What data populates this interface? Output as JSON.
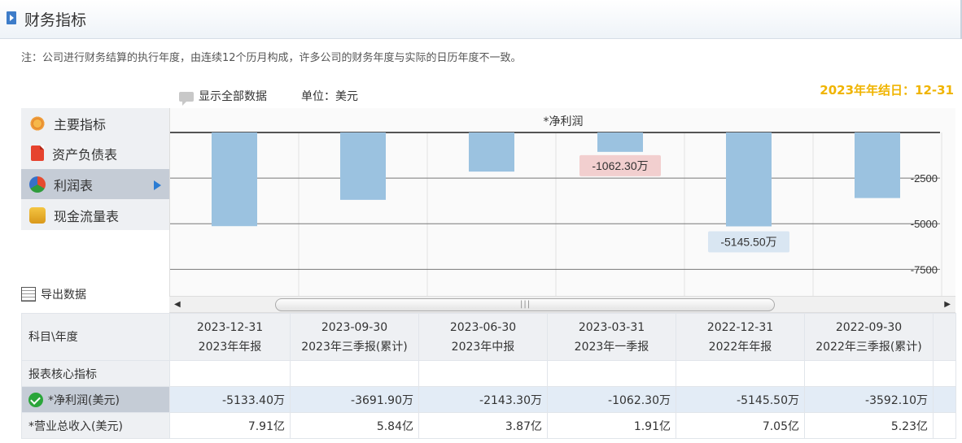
{
  "header": {
    "title": "财务指标"
  },
  "note": "注：公司进行财务结算的执行年度，由连续12个历月构成，许多公司的财务年度与实际的日历年度不一致。",
  "toolbar": {
    "show_all": "显示全部数据",
    "unit_label": "单位：",
    "unit_value": "美元",
    "year_end": "2023年年结日：12-31"
  },
  "sidebar": {
    "items": [
      {
        "label": "主要指标",
        "icon": "flower-icon"
      },
      {
        "label": "资产负债表",
        "icon": "document-icon"
      },
      {
        "label": "利润表",
        "icon": "pie-ball-icon",
        "active": true
      },
      {
        "label": "现金流量表",
        "icon": "coins-icon"
      }
    ],
    "export_label": "导出数据"
  },
  "chart_data": {
    "type": "bar",
    "title": "*净利润",
    "categories": [
      "2023-12-31",
      "2023-09-30",
      "2023-06-30",
      "2023-03-31",
      "2022-12-31",
      "2022-09-30"
    ],
    "values": [
      -5133.4,
      -3691.9,
      -2143.3,
      -1062.3,
      -5145.5,
      -3592.1
    ],
    "ylim": [
      -9000,
      0
    ],
    "yticks": [
      "-2500",
      "-5000",
      "-7500"
    ],
    "tooltips": [
      "-1062.30万",
      "-5145.50万"
    ],
    "colors": {
      "bar": "#9bc2e0",
      "tooltip_red_bg": "#f2cfcf",
      "tooltip_blue_bg": "#d9e6f2"
    }
  },
  "table": {
    "corner": "科目\\年度",
    "columns": [
      {
        "date": "2023-12-31",
        "report": "2023年年报"
      },
      {
        "date": "2023-09-30",
        "report": "2023年三季报(累计)"
      },
      {
        "date": "2023-06-30",
        "report": "2023年中报"
      },
      {
        "date": "2023-03-31",
        "report": "2023年一季报"
      },
      {
        "date": "2022-12-31",
        "report": "2022年年报"
      },
      {
        "date": "2022-09-30",
        "report": "2022年三季报(累计)"
      }
    ],
    "section": "报表核心指标",
    "rows": [
      {
        "label": "*净利润(美元)",
        "values": [
          "-5133.40万",
          "-3691.90万",
          "-2143.30万",
          "-1062.30万",
          "-5145.50万",
          "-3592.10万"
        ]
      },
      {
        "label": "*营业总收入(美元)",
        "values": [
          "7.91亿",
          "5.84亿",
          "3.87亿",
          "1.91亿",
          "7.05亿",
          "5.23亿"
        ]
      }
    ]
  }
}
